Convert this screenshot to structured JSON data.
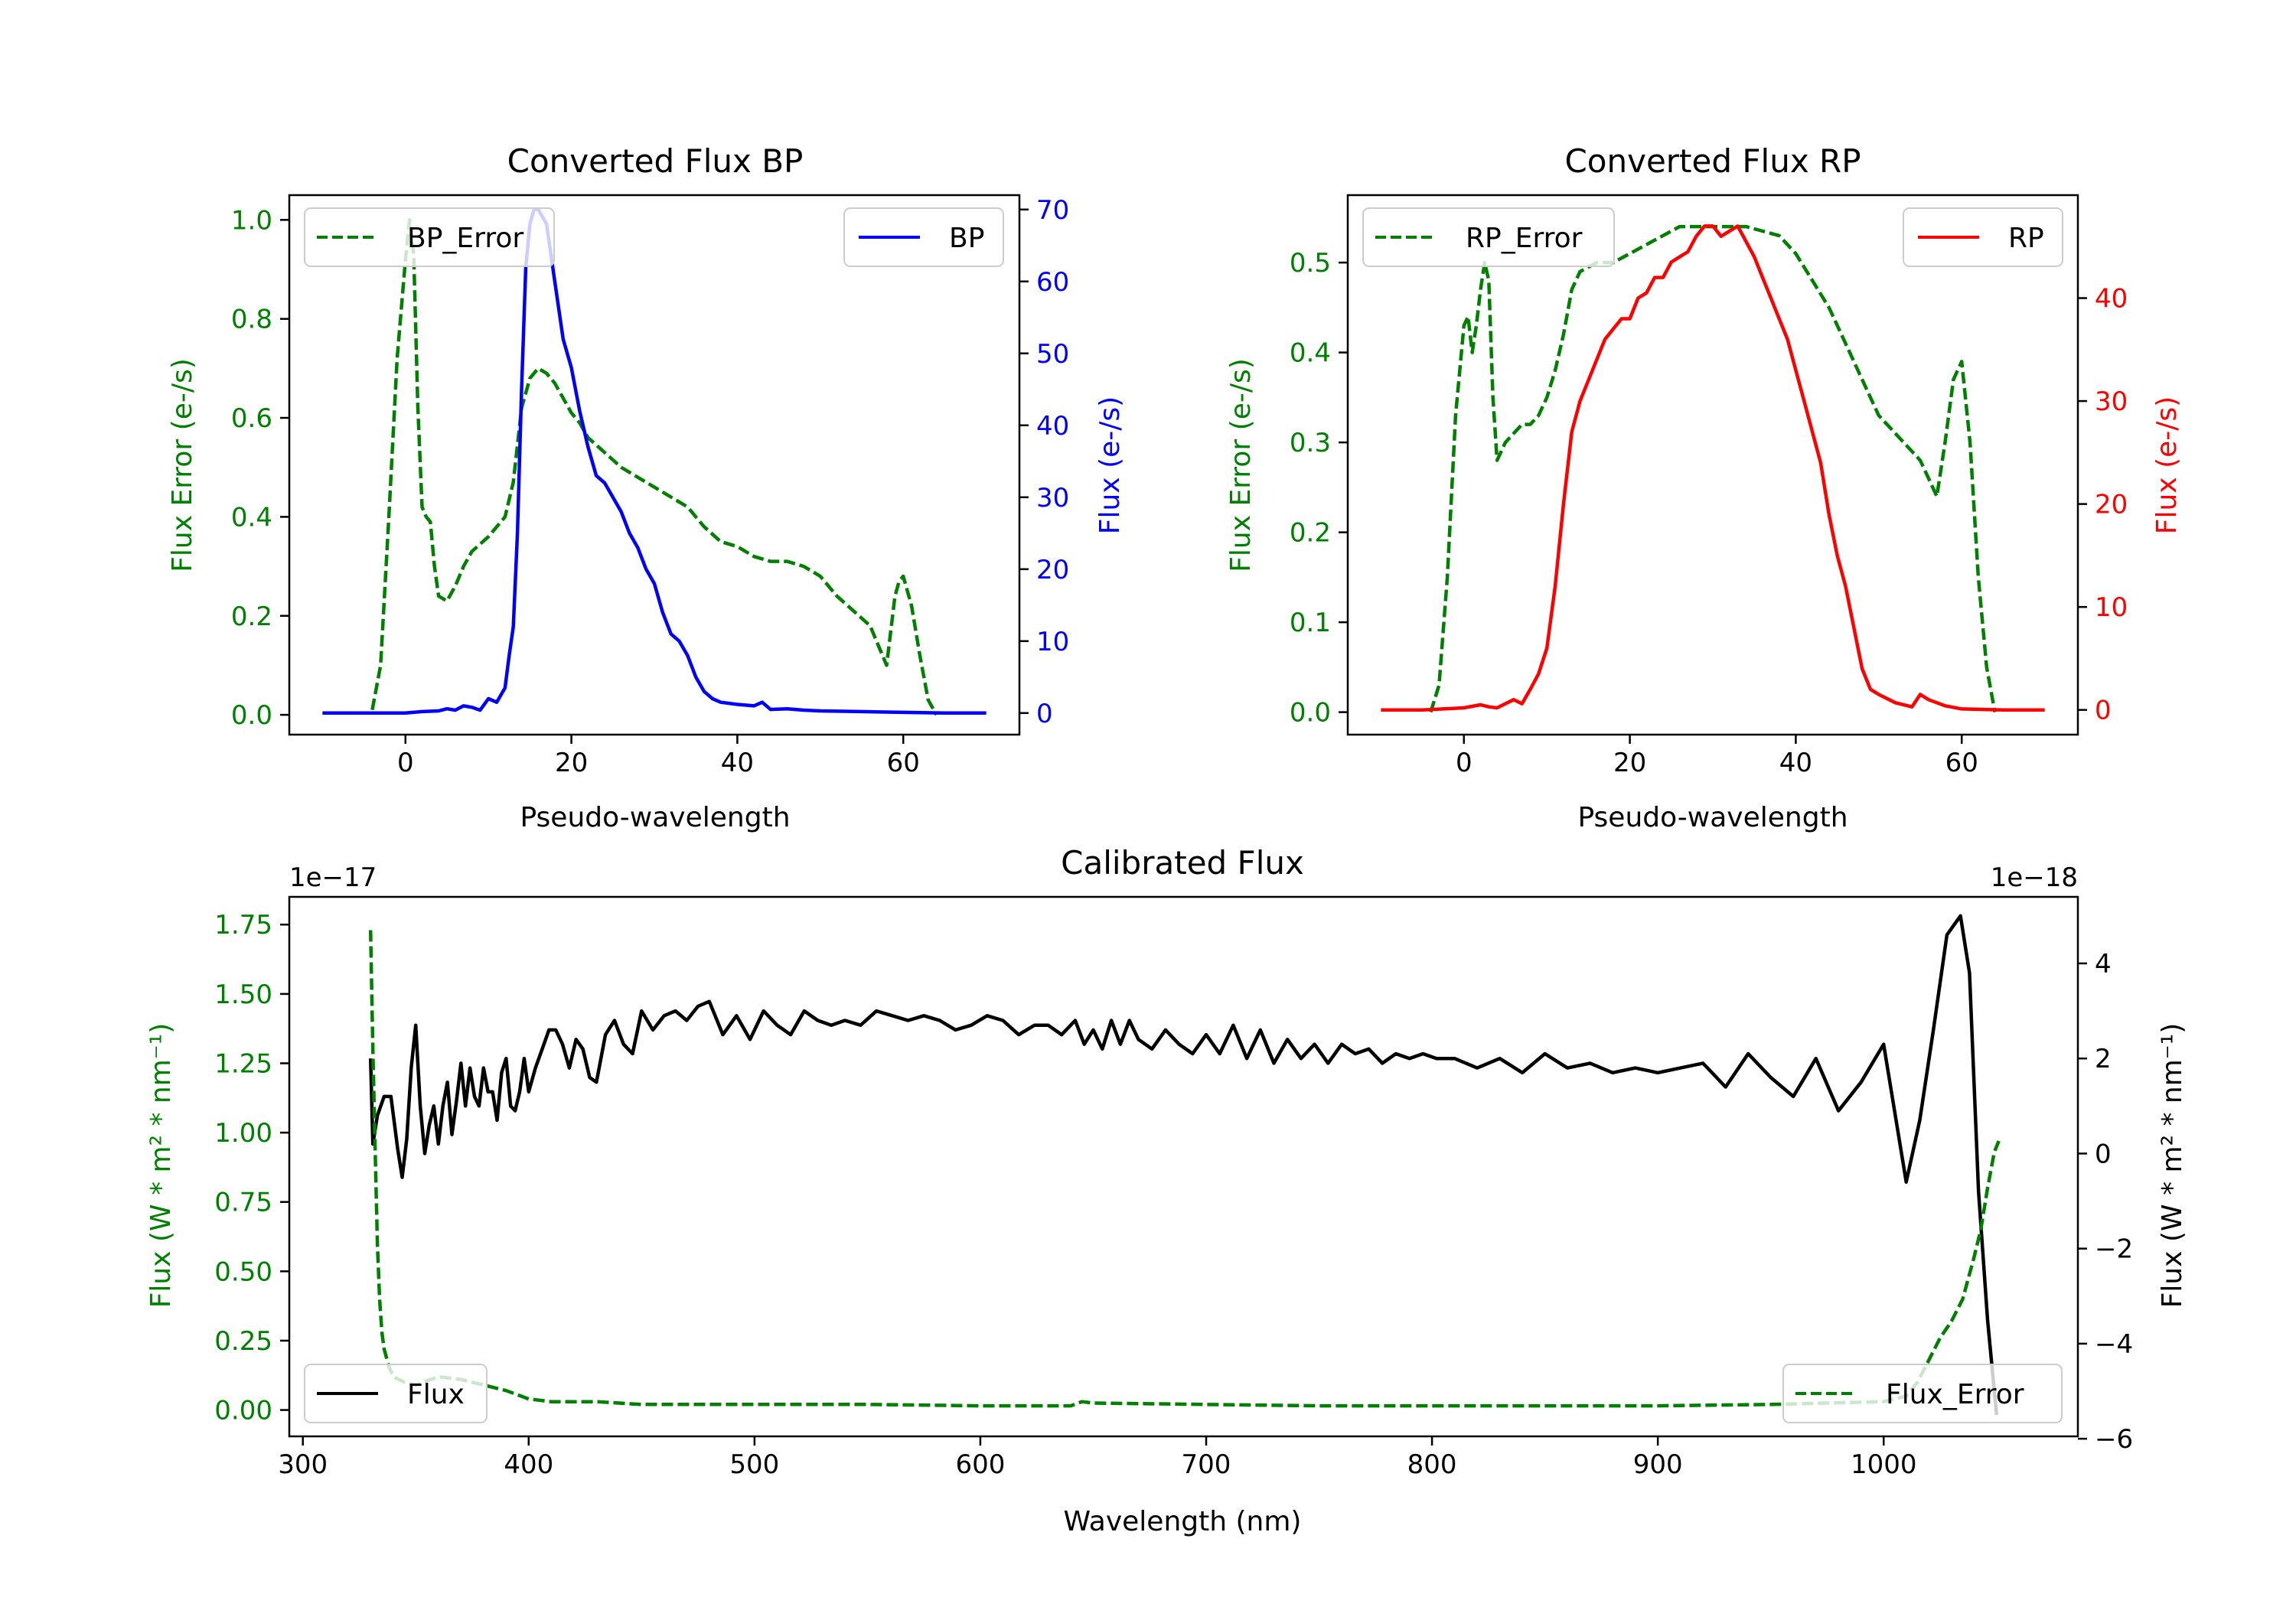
{
  "chart_data": [
    {
      "id": "bp",
      "type": "line",
      "title": "Converted Flux BP",
      "xlabel": "Pseudo-wavelength",
      "ylabel_left": "Flux Error (e-/s)",
      "ylabel_right": "Flux (e-/s)",
      "xlim": [
        -14,
        74
      ],
      "ylim_left": [
        -0.04,
        1.05
      ],
      "ylim_right": [
        -3.0,
        72.0
      ],
      "xticks": [
        0,
        20,
        40,
        60
      ],
      "xtick_labels": [
        "0",
        "20",
        "40",
        "60"
      ],
      "yticks_left": [
        0.0,
        0.2,
        0.4,
        0.6,
        0.8,
        1.0
      ],
      "ytick_labels_left": [
        "0.0",
        "0.2",
        "0.4",
        "0.6",
        "0.8",
        "1.0"
      ],
      "yticks_right": [
        0,
        10,
        20,
        30,
        40,
        50,
        60,
        70
      ],
      "ytick_labels_right": [
        "0",
        "10",
        "20",
        "30",
        "40",
        "50",
        "60",
        "70"
      ],
      "left_color": "#008000",
      "right_color": "#0000ff",
      "series": [
        {
          "name": "BP_Error",
          "axis": "left",
          "color": "#008000",
          "style": "dashed",
          "x": [
            -4,
            -3,
            -2,
            -1,
            0,
            0.5,
            1,
            1.5,
            2,
            2.5,
            3,
            3.5,
            4,
            5,
            6,
            7,
            8,
            10,
            12,
            13,
            14,
            15,
            16,
            17,
            18,
            19,
            20,
            21,
            22,
            24,
            26,
            28,
            30,
            32,
            34,
            36,
            38,
            40,
            42,
            44,
            46,
            48,
            50,
            52,
            54,
            56,
            57,
            58,
            59,
            59.5,
            60,
            61,
            62,
            63,
            64
          ],
          "y": [
            0.01,
            0.1,
            0.4,
            0.72,
            0.92,
            1.0,
            0.93,
            0.62,
            0.42,
            0.4,
            0.39,
            0.3,
            0.24,
            0.23,
            0.26,
            0.3,
            0.33,
            0.36,
            0.4,
            0.47,
            0.62,
            0.68,
            0.7,
            0.69,
            0.67,
            0.64,
            0.61,
            0.59,
            0.56,
            0.53,
            0.5,
            0.48,
            0.46,
            0.44,
            0.42,
            0.38,
            0.35,
            0.34,
            0.32,
            0.31,
            0.31,
            0.3,
            0.28,
            0.24,
            0.21,
            0.18,
            0.14,
            0.1,
            0.24,
            0.27,
            0.28,
            0.22,
            0.12,
            0.03,
            0.0
          ]
        },
        {
          "name": "BP",
          "axis": "right",
          "color": "#0000ff",
          "style": "solid",
          "x": [
            -10,
            -5,
            0,
            2,
            4,
            5,
            6,
            7,
            8,
            9,
            10,
            11,
            12,
            12.5,
            13,
            13.5,
            14,
            14.5,
            15,
            15.5,
            16,
            17,
            18,
            19,
            20,
            21,
            22,
            23,
            24,
            25,
            26,
            27,
            28,
            29,
            30,
            31,
            32,
            33,
            34,
            35,
            36,
            37,
            38,
            40,
            42,
            43,
            44,
            46,
            48,
            50,
            55,
            60,
            65,
            70
          ],
          "y": [
            0,
            0,
            0,
            0.2,
            0.3,
            0.6,
            0.4,
            1.0,
            0.8,
            0.4,
            2.0,
            1.5,
            3.5,
            8,
            12,
            25,
            45,
            62,
            68,
            70,
            70,
            68,
            60,
            52,
            48,
            42,
            37,
            33,
            32,
            30,
            28,
            25,
            23,
            20,
            18,
            14,
            11,
            10,
            8,
            5,
            3,
            2,
            1.5,
            1.2,
            1.0,
            1.5,
            0.5,
            0.6,
            0.4,
            0.3,
            0.2,
            0.1,
            0,
            0
          ]
        }
      ],
      "legend": [
        {
          "label": "BP_Error",
          "position": "upper left"
        },
        {
          "label": "BP",
          "position": "upper right"
        }
      ]
    },
    {
      "id": "rp",
      "type": "line",
      "title": "Converted Flux RP",
      "xlabel": "Pseudo-wavelength",
      "ylabel_left": "Flux Error (e-/s)",
      "ylabel_right": "Flux (e-/s)",
      "xlim": [
        -14,
        74
      ],
      "ylim_left": [
        -0.025,
        0.575
      ],
      "ylim_right": [
        -2.4,
        50.0
      ],
      "xticks": [
        0,
        20,
        40,
        60
      ],
      "xtick_labels": [
        "0",
        "20",
        "40",
        "60"
      ],
      "yticks_left": [
        0.0,
        0.1,
        0.2,
        0.3,
        0.4,
        0.5
      ],
      "ytick_labels_left": [
        "0.0",
        "0.1",
        "0.2",
        "0.3",
        "0.4",
        "0.5"
      ],
      "yticks_right": [
        0,
        10,
        20,
        30,
        40
      ],
      "ytick_labels_right": [
        "0",
        "10",
        "20",
        "30",
        "40"
      ],
      "left_color": "#008000",
      "right_color": "#ff0000",
      "series": [
        {
          "name": "RP_Error",
          "axis": "right_hidden_left",
          "color": "#008000",
          "style": "dashed",
          "axis_used": "left",
          "x": [
            -4,
            -3,
            -2,
            -1,
            0,
            0.5,
            1,
            1.5,
            2,
            2.5,
            3,
            3.5,
            4,
            5,
            6,
            7,
            8,
            9,
            10,
            11,
            12,
            13,
            14,
            16,
            18,
            20,
            22,
            24,
            26,
            28,
            30,
            32,
            34,
            36,
            38,
            40,
            42,
            44,
            46,
            48,
            50,
            52,
            54,
            55,
            56,
            57,
            58,
            59,
            60,
            61,
            62,
            63,
            64
          ],
          "y": [
            0.0,
            0.03,
            0.15,
            0.33,
            0.43,
            0.44,
            0.4,
            0.43,
            0.47,
            0.5,
            0.48,
            0.35,
            0.28,
            0.3,
            0.31,
            0.32,
            0.32,
            0.33,
            0.35,
            0.38,
            0.42,
            0.47,
            0.49,
            0.5,
            0.5,
            0.51,
            0.52,
            0.53,
            0.54,
            0.54,
            0.54,
            0.54,
            0.54,
            0.535,
            0.53,
            0.51,
            0.48,
            0.45,
            0.41,
            0.37,
            0.33,
            0.31,
            0.29,
            0.28,
            0.26,
            0.24,
            0.3,
            0.37,
            0.39,
            0.3,
            0.15,
            0.05,
            0.0
          ]
        },
        {
          "name": "RP",
          "axis": "right",
          "color": "#ff0000",
          "style": "solid",
          "x": [
            -10,
            -5,
            0,
            2,
            3,
            4,
            5,
            6,
            7,
            8,
            9,
            10,
            11,
            12,
            13,
            14,
            15,
            16,
            17,
            18,
            19,
            20,
            21,
            22,
            23,
            24,
            25,
            26,
            27,
            28,
            29,
            30,
            31,
            32,
            33,
            34,
            35,
            36,
            37,
            38,
            39,
            40,
            41,
            42,
            43,
            44,
            45,
            46,
            47,
            48,
            49,
            50,
            52,
            54,
            55,
            56,
            58,
            60,
            65,
            70
          ],
          "y": [
            0,
            0,
            0.2,
            0.5,
            0.3,
            0.2,
            0.6,
            1.0,
            0.6,
            2.0,
            3.5,
            6,
            12,
            20,
            27,
            30,
            32,
            34,
            36,
            37,
            38,
            38,
            40,
            40.5,
            42,
            42,
            43.5,
            44,
            44.5,
            46,
            47,
            47,
            46,
            46.5,
            47,
            45.5,
            44,
            42,
            40,
            38,
            36,
            33,
            30,
            27,
            24,
            19,
            15,
            12,
            8,
            4,
            2,
            1.5,
            0.7,
            0.3,
            1.5,
            1.0,
            0.4,
            0.1,
            0,
            0
          ]
        }
      ],
      "legend": [
        {
          "label": "RP_Error",
          "position": "upper left"
        },
        {
          "label": "RP",
          "position": "upper right"
        }
      ]
    },
    {
      "id": "cal",
      "type": "line",
      "title": "Calibrated Flux",
      "xlabel": "Wavelength (nm)",
      "ylabel_left": "Flux (W * m² * nm⁻¹)",
      "ylabel_right": "Flux (W * m² * nm⁻¹)",
      "offset_left": "1e−17",
      "offset_right": "1e−18",
      "xlim": [
        294,
        1086
      ],
      "ylim_left": [
        -0.095,
        1.85
      ],
      "ylim_right": [
        -5.95,
        5.4
      ],
      "xticks": [
        300,
        400,
        500,
        600,
        700,
        800,
        900,
        1000
      ],
      "xtick_labels": [
        "300",
        "400",
        "500",
        "600",
        "700",
        "800",
        "900",
        "1000"
      ],
      "yticks_left": [
        0.0,
        0.25,
        0.5,
        0.75,
        1.0,
        1.25,
        1.5,
        1.75
      ],
      "ytick_labels_left": [
        "0.00",
        "0.25",
        "0.50",
        "0.75",
        "1.00",
        "1.25",
        "1.50",
        "1.75"
      ],
      "yticks_right": [
        -6,
        -4,
        -2,
        0,
        2,
        4
      ],
      "ytick_labels_right": [
        "−6",
        "−4",
        "−2",
        "0",
        "2",
        "4"
      ],
      "left_color": "#008000",
      "right_color": "#000000",
      "series": [
        {
          "name": "Flux",
          "axis": "right",
          "color": "#000000",
          "style": "solid",
          "x": [
            330,
            331,
            333,
            336,
            339,
            342,
            344,
            346,
            348,
            350,
            352,
            354,
            356,
            358,
            360,
            362,
            364,
            366,
            368,
            370,
            372,
            374,
            376,
            378,
            380,
            382,
            384,
            386,
            388,
            390,
            392,
            394,
            396,
            398,
            400,
            403,
            406,
            409,
            412,
            415,
            418,
            421,
            424,
            427,
            430,
            434,
            438,
            442,
            446,
            450,
            455,
            460,
            465,
            470,
            475,
            480,
            486,
            492,
            498,
            504,
            510,
            516,
            522,
            528,
            534,
            540,
            547,
            554,
            561,
            568,
            575,
            582,
            589,
            596,
            603,
            610,
            617,
            624,
            630,
            636,
            642,
            646,
            650,
            654,
            658,
            662,
            666,
            670,
            676,
            682,
            688,
            694,
            700,
            706,
            712,
            718,
            724,
            730,
            736,
            742,
            748,
            754,
            760,
            766,
            772,
            778,
            784,
            790,
            796,
            802,
            810,
            820,
            830,
            840,
            850,
            860,
            870,
            880,
            890,
            900,
            910,
            920,
            930,
            940,
            950,
            960,
            970,
            980,
            990,
            1000,
            1010,
            1016,
            1022,
            1028,
            1034,
            1038,
            1042,
            1046,
            1050
          ],
          "y": [
            2.0,
            0.2,
            0.8,
            1.2,
            1.2,
            0.1,
            -0.5,
            0.3,
            1.8,
            2.7,
            1.0,
            0.0,
            0.6,
            1.0,
            0.2,
            1.0,
            1.5,
            0.4,
            1.1,
            1.9,
            1.0,
            1.8,
            1.2,
            1.0,
            1.8,
            1.3,
            1.3,
            0.7,
            1.7,
            2.0,
            1.0,
            0.9,
            1.3,
            2.0,
            1.3,
            1.8,
            2.2,
            2.6,
            2.6,
            2.3,
            1.8,
            2.4,
            2.2,
            1.6,
            1.5,
            2.5,
            2.8,
            2.3,
            2.1,
            3.0,
            2.6,
            2.9,
            3.0,
            2.8,
            3.1,
            3.2,
            2.5,
            2.9,
            2.4,
            3.0,
            2.7,
            2.5,
            3.0,
            2.8,
            2.7,
            2.8,
            2.7,
            3.0,
            2.9,
            2.8,
            2.9,
            2.8,
            2.6,
            2.7,
            2.9,
            2.8,
            2.5,
            2.7,
            2.7,
            2.5,
            2.8,
            2.3,
            2.6,
            2.2,
            2.8,
            2.3,
            2.8,
            2.4,
            2.2,
            2.6,
            2.3,
            2.1,
            2.5,
            2.1,
            2.7,
            2.0,
            2.6,
            1.9,
            2.4,
            2.0,
            2.3,
            1.9,
            2.3,
            2.1,
            2.2,
            1.9,
            2.1,
            2.0,
            2.1,
            2.0,
            2.0,
            1.8,
            2.0,
            1.7,
            2.1,
            1.8,
            1.9,
            1.7,
            1.8,
            1.7,
            1.8,
            1.9,
            1.4,
            2.1,
            1.6,
            1.2,
            2.0,
            0.9,
            1.5,
            2.3,
            -0.6,
            0.7,
            2.6,
            4.6,
            5.0,
            3.8,
            -0.8,
            -3.5,
            -5.5
          ]
        },
        {
          "name": "Flux_Error",
          "axis": "left",
          "color": "#008000",
          "style": "dashed",
          "x": [
            330,
            331,
            332,
            333,
            334,
            335,
            336,
            338,
            340,
            345,
            350,
            360,
            370,
            380,
            390,
            400,
            410,
            420,
            430,
            450,
            500,
            550,
            600,
            620,
            640,
            645,
            650,
            700,
            750,
            800,
            850,
            900,
            950,
            1000,
            1010,
            1015,
            1020,
            1025,
            1030,
            1035,
            1040,
            1043,
            1046,
            1049,
            1051
          ],
          "y": [
            1.73,
            1.3,
            0.95,
            0.6,
            0.4,
            0.28,
            0.22,
            0.16,
            0.12,
            0.1,
            0.09,
            0.12,
            0.11,
            0.09,
            0.07,
            0.04,
            0.03,
            0.03,
            0.03,
            0.02,
            0.02,
            0.02,
            0.015,
            0.015,
            0.015,
            0.03,
            0.025,
            0.02,
            0.015,
            0.015,
            0.015,
            0.015,
            0.02,
            0.03,
            0.05,
            0.1,
            0.18,
            0.26,
            0.32,
            0.4,
            0.55,
            0.65,
            0.8,
            0.93,
            0.97
          ]
        }
      ],
      "legend": [
        {
          "label": "Flux",
          "position": "lower left"
        },
        {
          "label": "Flux_Error",
          "position": "lower right"
        }
      ]
    }
  ]
}
